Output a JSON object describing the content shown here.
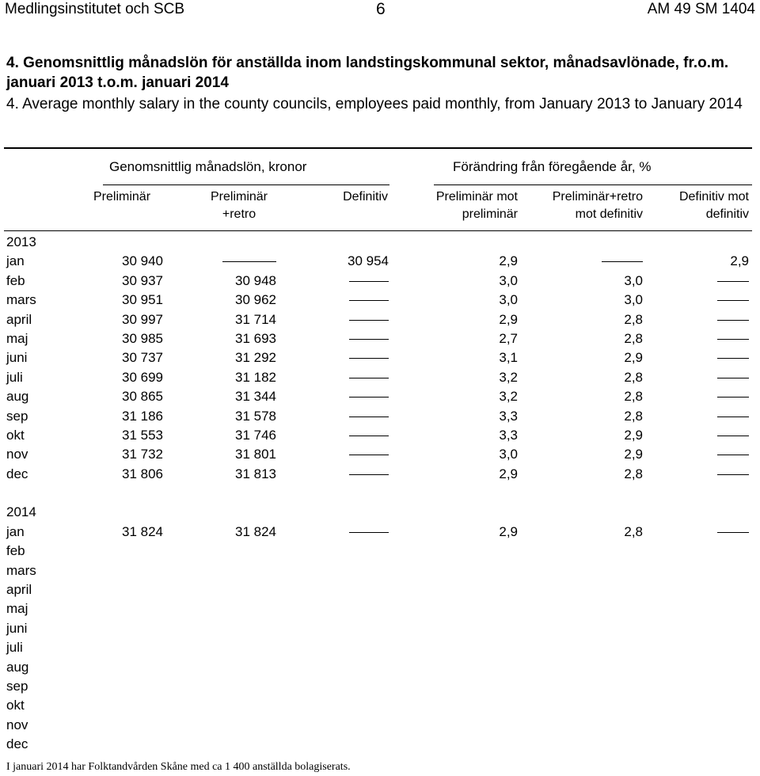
{
  "header": {
    "left": "Medlingsinstitutet och SCB",
    "center": "6",
    "right": "AM 49 SM 1404"
  },
  "title_sv": "4. Genomsnittlig månadslön för anställda inom landstingskommunal sektor, månadsavlönade, fr.o.m. januari 2013 t.o.m. januari 2014",
  "title_en": "4. Average monthly salary in the county councils, employees paid monthly, from January 2013 to January 2014",
  "group_headers": {
    "salary": "Genomsnittlig månadslön, kronor",
    "change": "Förändring från föregående år, %"
  },
  "columns": {
    "c1": "Preliminär",
    "c2_line1": "Preliminär",
    "c2_line2": "+retro",
    "c3": "Definitiv",
    "c4_line1": "Preliminär mot",
    "c4_line2": "preliminär",
    "c5_line1": "Preliminär+retro",
    "c5_line2": "mot definitiv",
    "c6_line1": "Definitiv mot",
    "c6_line2": "definitiv"
  },
  "dash_symbol": "–",
  "rows": [
    {
      "label": "2013",
      "values": [
        "",
        "",
        "",
        "",
        "",
        ""
      ]
    },
    {
      "label": "jan",
      "values": [
        "30 940",
        "–",
        "30 954",
        "2,9",
        "–",
        "2,9"
      ]
    },
    {
      "label": "feb",
      "values": [
        "30 937",
        "30 948",
        "–",
        "3,0",
        "3,0",
        "–"
      ]
    },
    {
      "label": "mars",
      "values": [
        "30 951",
        "30 962",
        "–",
        "3,0",
        "3,0",
        "–"
      ]
    },
    {
      "label": "april",
      "values": [
        "30 997",
        "31 714",
        "–",
        "2,9",
        "2,8",
        "–"
      ]
    },
    {
      "label": "maj",
      "values": [
        "30 985",
        "31 693",
        "–",
        "2,7",
        "2,8",
        "–"
      ]
    },
    {
      "label": "juni",
      "values": [
        "30 737",
        "31 292",
        "–",
        "3,1",
        "2,9",
        "–"
      ]
    },
    {
      "label": "juli",
      "values": [
        "30 699",
        "31 182",
        "–",
        "3,2",
        "2,8",
        "–"
      ]
    },
    {
      "label": "aug",
      "values": [
        "30 865",
        "31 344",
        "–",
        "3,2",
        "2,8",
        "–"
      ]
    },
    {
      "label": "sep",
      "values": [
        "31 186",
        "31 578",
        "–",
        "3,3",
        "2,8",
        "–"
      ]
    },
    {
      "label": "okt",
      "values": [
        "31 553",
        "31 746",
        "–",
        "3,3",
        "2,9",
        "–"
      ]
    },
    {
      "label": "nov",
      "values": [
        "31 732",
        "31 801",
        "–",
        "3,0",
        "2,9",
        "–"
      ]
    },
    {
      "label": "dec",
      "values": [
        "31 806",
        "31 813",
        "–",
        "2,9",
        "2,8",
        "–"
      ]
    },
    {
      "label": "",
      "values": [
        "",
        "",
        "",
        "",
        "",
        ""
      ]
    },
    {
      "label": "2014",
      "values": [
        "",
        "",
        "",
        "",
        "",
        ""
      ]
    },
    {
      "label": "jan",
      "values": [
        "31 824",
        "31 824",
        "–",
        "2,9",
        "2,8",
        "–"
      ]
    },
    {
      "label": "feb",
      "values": [
        "",
        "",
        "",
        "",
        "",
        ""
      ]
    },
    {
      "label": "mars",
      "values": [
        "",
        "",
        "",
        "",
        "",
        ""
      ]
    },
    {
      "label": "april",
      "values": [
        "",
        "",
        "",
        "",
        "",
        ""
      ]
    },
    {
      "label": "maj",
      "values": [
        "",
        "",
        "",
        "",
        "",
        ""
      ]
    },
    {
      "label": "juni",
      "values": [
        "",
        "",
        "",
        "",
        "",
        ""
      ]
    },
    {
      "label": "juli",
      "values": [
        "",
        "",
        "",
        "",
        "",
        ""
      ]
    },
    {
      "label": "aug",
      "values": [
        "",
        "",
        "",
        "",
        "",
        ""
      ]
    },
    {
      "label": "sep",
      "values": [
        "",
        "",
        "",
        "",
        "",
        ""
      ]
    },
    {
      "label": "okt",
      "values": [
        "",
        "",
        "",
        "",
        "",
        ""
      ]
    },
    {
      "label": "nov",
      "values": [
        "",
        "",
        "",
        "",
        "",
        ""
      ]
    },
    {
      "label": "dec",
      "values": [
        "",
        "",
        "",
        "",
        "",
        ""
      ]
    }
  ],
  "footnote": "I januari 2014 har Folktandvården Skåne med ca 1 400 anställda bolagiserats."
}
